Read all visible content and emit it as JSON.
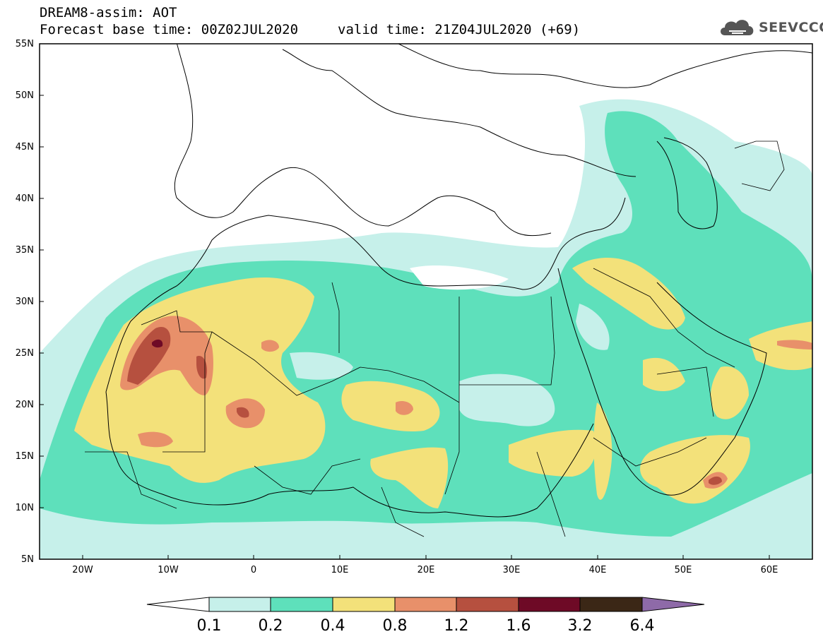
{
  "header": {
    "line1": "DREAM8-assim: AOT",
    "line2": "Forecast base time: 00Z02JUL2020",
    "line3": "valid time: 21Z04JUL2020 (+69)"
  },
  "logo": {
    "text": "SEEVCCC",
    "icon": "cloud-icon"
  },
  "axes": {
    "lat_labels": [
      "55N",
      "50N",
      "45N",
      "40N",
      "35N",
      "30N",
      "25N",
      "20N",
      "15N",
      "10N",
      "5N"
    ],
    "lon_labels": [
      "20W",
      "10W",
      "0",
      "10E",
      "20E",
      "30E",
      "40E",
      "50E",
      "60E"
    ],
    "lat_range": [
      5,
      55
    ],
    "lon_range": [
      -25,
      65
    ]
  },
  "colorbar": {
    "labels": [
      "0.1",
      "0.2",
      "0.4",
      "0.8",
      "1.2",
      "1.6",
      "3.2",
      "6.4"
    ],
    "colors": [
      "#c6f0ea",
      "#5ee0bb",
      "#f3e17a",
      "#e8906a",
      "#b6503f",
      "#6e0a26",
      "#3b2716",
      "#8e6aa8"
    ]
  },
  "colors": {
    "coast": "#000000",
    "border": "#000000",
    "background": "#ffffff"
  }
}
